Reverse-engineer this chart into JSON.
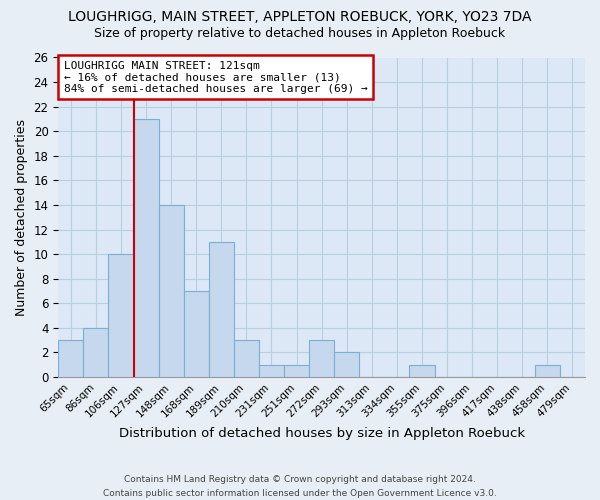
{
  "title": "LOUGHRIGG, MAIN STREET, APPLETON ROEBUCK, YORK, YO23 7DA",
  "subtitle": "Size of property relative to detached houses in Appleton Roebuck",
  "xlabel": "Distribution of detached houses by size in Appleton Roebuck",
  "ylabel": "Number of detached properties",
  "bin_labels": [
    "65sqm",
    "86sqm",
    "106sqm",
    "127sqm",
    "148sqm",
    "168sqm",
    "189sqm",
    "210sqm",
    "231sqm",
    "251sqm",
    "272sqm",
    "293sqm",
    "313sqm",
    "334sqm",
    "355sqm",
    "375sqm",
    "396sqm",
    "417sqm",
    "438sqm",
    "458sqm",
    "479sqm"
  ],
  "bar_heights": [
    3,
    4,
    10,
    21,
    14,
    7,
    11,
    3,
    1,
    1,
    3,
    2,
    0,
    0,
    1,
    0,
    0,
    0,
    0,
    1,
    0
  ],
  "bar_color": "#c5d8ee",
  "bar_edge_color": "#7aafd4",
  "vline_x_index": 3,
  "vline_color": "#cc0000",
  "annotation_line1": "LOUGHRIGG MAIN STREET: 121sqm",
  "annotation_line2": "← 16% of detached houses are smaller (13)",
  "annotation_line3": "84% of semi-detached houses are larger (69) →",
  "annotation_box_color": "white",
  "annotation_box_edge_color": "#cc0000",
  "ylim": [
    0,
    26
  ],
  "yticks": [
    0,
    2,
    4,
    6,
    8,
    10,
    12,
    14,
    16,
    18,
    20,
    22,
    24,
    26
  ],
  "footer_line1": "Contains HM Land Registry data © Crown copyright and database right 2024.",
  "footer_line2": "Contains public sector information licensed under the Open Government Licence v3.0.",
  "bg_color": "#e8eef5",
  "plot_bg_color": "#dce8f5",
  "grid_color": "#b8cfe0"
}
